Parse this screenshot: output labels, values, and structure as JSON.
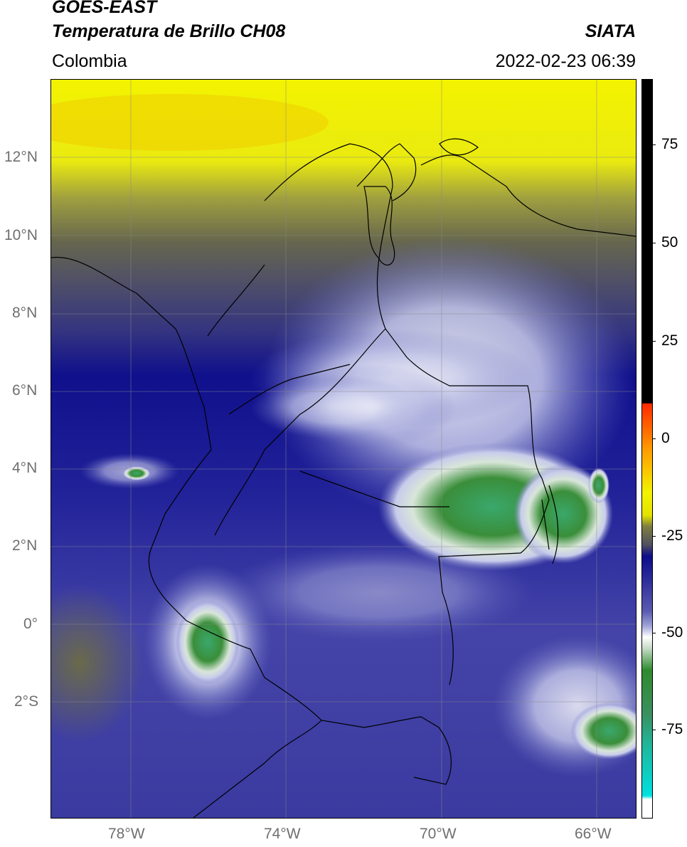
{
  "header": {
    "line1": "GOES-EAST",
    "line2": "Temperatura de Brillo CH08",
    "region": "Colombia",
    "org": "SIATA",
    "timestamp": "2022-02-23 06:39"
  },
  "map": {
    "lat_labels": [
      "12°N",
      "10°N",
      "8°N",
      "6°N",
      "4°N",
      "2°N",
      "0°",
      "2°S"
    ],
    "lon_labels": [
      "78°W",
      "74°W",
      "70°W",
      "66°W"
    ],
    "extent": {
      "lon_min": -80.1,
      "lon_max": -65.0,
      "lat_min": -5.2,
      "lat_max": 14.0
    },
    "grid": true,
    "variable": "brightness temperature (°C)"
  },
  "colorbar": {
    "labels": [
      "75",
      "50",
      "25",
      "0",
      "-25",
      "-50",
      "-75"
    ],
    "range": [
      -95,
      90
    ],
    "colors": {
      "black": "#000000",
      "red": "#ff2a00",
      "orange": "#ff9a00",
      "yellow": "#f3f300",
      "olive": "#7f7f40",
      "navy": "#0c0c8a",
      "lavender": "#b0b4e0",
      "white": "#ffffff",
      "green": "#2e8b2e",
      "teal": "#20b59a",
      "cyan": "#00e0e0"
    }
  }
}
